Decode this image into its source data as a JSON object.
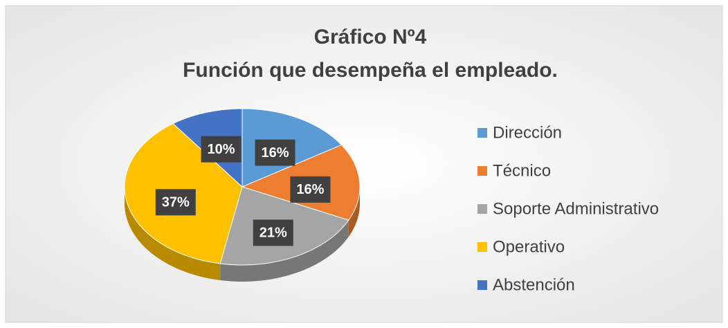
{
  "chart_data": {
    "type": "pie",
    "title": "Gráfico Nº4",
    "subtitle": "Función que desempeña el empleado.",
    "categories": [
      "Dirección",
      "Técnico",
      "Soporte Administrativo",
      "Operativo",
      "Abstención"
    ],
    "values": [
      16,
      16,
      21,
      37,
      10
    ],
    "value_labels": [
      "16%",
      "16%",
      "21%",
      "37%",
      "10%"
    ],
    "colors": [
      "#5b9bd5",
      "#ed7d31",
      "#a5a5a5",
      "#ffc000",
      "#4472c4"
    ],
    "legend": "right"
  }
}
